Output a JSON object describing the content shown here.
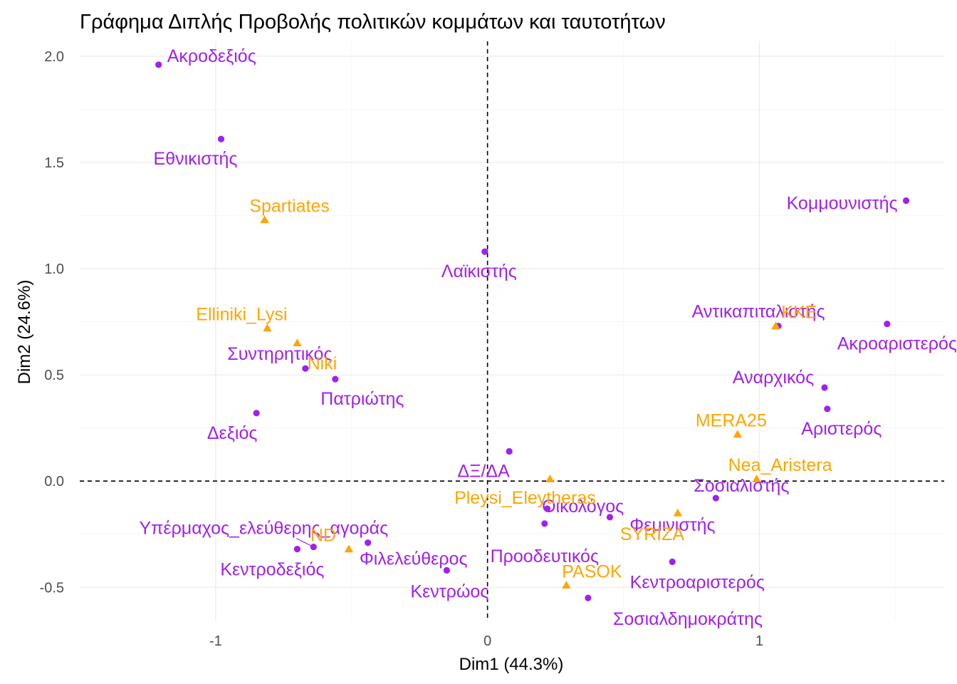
{
  "chart_data": {
    "type": "scatter",
    "title": "Γράφημα Διπλής Προβολής πολιτικών κομμάτων και ταυτοτήτων",
    "xlabel": "Dim1 (44.3%)",
    "ylabel": "Dim2 (24.6%)",
    "xlim": [
      -1.5,
      1.68
    ],
    "ylim": [
      -0.66,
      2.07
    ],
    "x_ticks": [
      -1,
      0,
      1
    ],
    "x_tick_labels": [
      "-1",
      "0",
      "1"
    ],
    "y_ticks": [
      -0.5,
      0.0,
      0.5,
      1.0,
      1.5,
      2.0
    ],
    "y_tick_labels": [
      "-0.5",
      "0.0",
      "0.5",
      "1.0",
      "1.5",
      "2.0"
    ],
    "grid": true,
    "reference_lines": {
      "x": 0,
      "y": 0,
      "style": "dashed"
    },
    "colors": {
      "identities": "#a020f0",
      "parties": "#ffa500"
    },
    "series": [
      {
        "group": "identities",
        "marker": "circle",
        "color": "#a020f0",
        "points": [
          {
            "label": "Ακροδεξιός",
            "x": -1.21,
            "y": 1.96
          },
          {
            "label": "Εθνικιστής",
            "x": -0.98,
            "y": 1.61
          },
          {
            "label": "Λαϊκιστής",
            "x": -0.01,
            "y": 1.08
          },
          {
            "label": "Κομμουνιστής",
            "x": 1.54,
            "y": 1.32
          },
          {
            "label": "Αντικαπιταλιστής",
            "x": 1.07,
            "y": 0.73
          },
          {
            "label": "Ακροαριστερός",
            "x": 1.47,
            "y": 0.74
          },
          {
            "label": "Αναρχικός",
            "x": 1.24,
            "y": 0.44
          },
          {
            "label": "Αριστερός",
            "x": 1.25,
            "y": 0.34
          },
          {
            "label": "Συντηρητικός",
            "x": -0.67,
            "y": 0.53
          },
          {
            "label": "Πατριώτης",
            "x": -0.56,
            "y": 0.48
          },
          {
            "label": "Δεξιός",
            "x": -0.85,
            "y": 0.32
          },
          {
            "label": "ΔΞ/ΔΑ",
            "x": 0.08,
            "y": 0.14
          },
          {
            "label": "Σοσιαλιστής",
            "x": 0.84,
            "y": -0.08
          },
          {
            "label": "Οικολόγος",
            "x": 0.22,
            "y": -0.13
          },
          {
            "label": "Φεμινιστής",
            "x": 0.45,
            "y": -0.17
          },
          {
            "label": "Προοδευτικός",
            "x": 0.21,
            "y": -0.2
          },
          {
            "label": "Υπέρμαχος_ελεύθερης_αγοράς",
            "x": -0.64,
            "y": -0.31
          },
          {
            "label": "Κεντροδεξιός",
            "x": -0.7,
            "y": -0.32
          },
          {
            "label": "Φιλελεύθερος",
            "x": -0.44,
            "y": -0.29
          },
          {
            "label": "Κεντρώος",
            "x": -0.15,
            "y": -0.42
          },
          {
            "label": "Κεντροαριστερός",
            "x": 0.68,
            "y": -0.38
          },
          {
            "label": "Σοσιαλδημοκράτης",
            "x": 0.37,
            "y": -0.55
          }
        ]
      },
      {
        "group": "parties",
        "marker": "triangle",
        "color": "#ffa500",
        "points": [
          {
            "label": "Spartiates",
            "x": -0.82,
            "y": 1.23
          },
          {
            "label": "Elliniki_Lysi",
            "x": -0.81,
            "y": 0.72
          },
          {
            "label": "Niki",
            "x": -0.7,
            "y": 0.65
          },
          {
            "label": "KKE",
            "x": 1.06,
            "y": 0.73
          },
          {
            "label": "MERA25",
            "x": 0.92,
            "y": 0.22
          },
          {
            "label": "Nea_Aristera",
            "x": 0.99,
            "y": 0.01
          },
          {
            "label": "Pleysi_Eleytheras",
            "x": 0.23,
            "y": 0.01
          },
          {
            "label": "SYRIZA",
            "x": 0.7,
            "y": -0.15
          },
          {
            "label": "ND",
            "x": -0.51,
            "y": -0.32
          },
          {
            "label": "PASOK",
            "x": 0.29,
            "y": -0.49
          }
        ]
      }
    ]
  }
}
